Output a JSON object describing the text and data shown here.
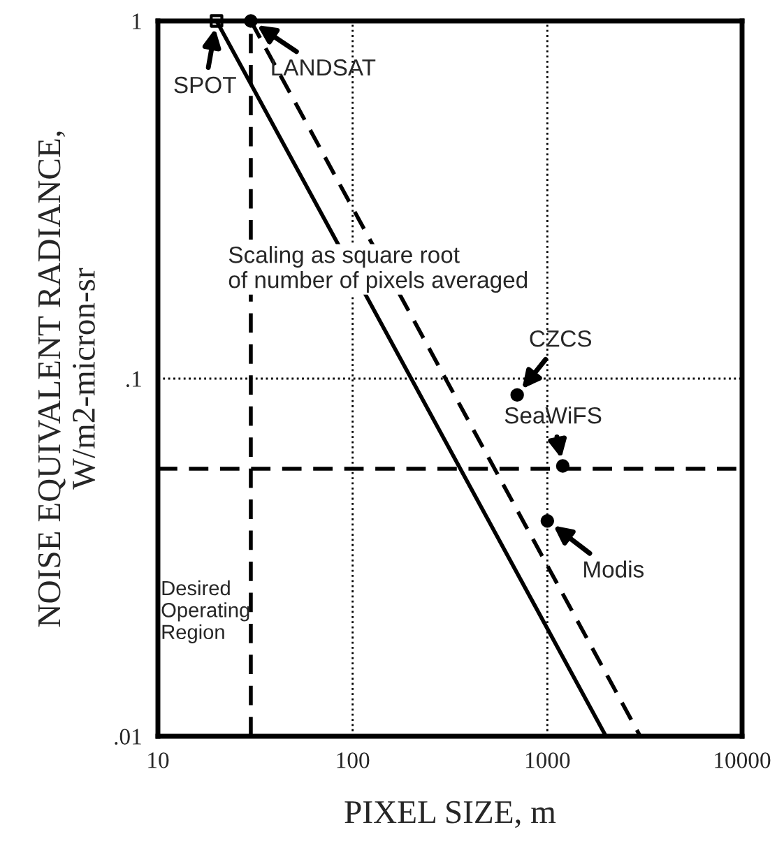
{
  "chart_data": {
    "type": "line",
    "xlabel": "PIXEL SIZE, m",
    "ylabel": "NOISE EQUIVALENT RADIANCE,\nW/m2-micron-sr",
    "log": "xy",
    "xlim": [
      10,
      10000
    ],
    "xticks": [
      10,
      100,
      1000,
      10000
    ],
    "ylim": [
      0.01,
      1
    ],
    "yticks": [
      {
        "value": 0.01,
        "label": ".01"
      },
      {
        "value": 0.1,
        "label": ".1"
      },
      1
    ],
    "grid": true,
    "series": [
      {
        "x": [
          20,
          2000
        ],
        "values": [
          1,
          0.01
        ],
        "color": "#000000",
        "line_style": "solid",
        "marker": "none"
      },
      {
        "x": [
          30,
          3000
        ],
        "values": [
          1,
          0.01
        ],
        "color": "#000000",
        "line_style": "dashed",
        "marker": "none"
      },
      {
        "type": "scatter",
        "x": [
          20
        ],
        "values": [
          1
        ],
        "color": "#000000",
        "marker": "square"
      },
      {
        "type": "scatter",
        "x": [
          30,
          700,
          1200,
          1000
        ],
        "values": [
          1,
          0.09,
          0.057,
          0.04
        ],
        "color": "#000000",
        "marker": "circle"
      }
    ],
    "ref_lines": [
      {
        "axis": "x",
        "value": 30,
        "color": "#000000",
        "line_style": "dashed"
      },
      {
        "axis": "y",
        "value": 0.056,
        "color": "#000000",
        "line_style": "dashed"
      }
    ],
    "annotations": [
      {
        "text": "SPOT",
        "x": 20,
        "y": 1
      },
      {
        "text": "LANDSAT",
        "x": 30,
        "y": 1
      },
      {
        "text": "CZCS",
        "x": 700,
        "y": 0.09
      },
      {
        "text": "SeaWiFS",
        "x": 1200,
        "y": 0.057
      },
      {
        "text": "Modis",
        "x": 1000,
        "y": 0.04
      },
      "Scaling as square root\nof number of pixels averaged",
      "Desired\nOperating\nRegion"
    ]
  }
}
